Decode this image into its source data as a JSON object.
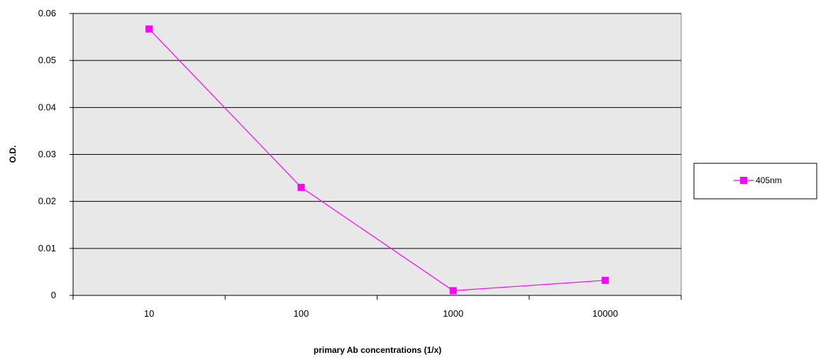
{
  "chart_data": {
    "type": "line",
    "title": "",
    "xlabel": "primary Ab concentrations (1/x)",
    "ylabel": "O.D.",
    "categories": [
      "10",
      "100",
      "1000",
      "10000"
    ],
    "ylim": [
      0,
      0.06
    ],
    "yticks": [
      "0",
      "0.01",
      "0.02",
      "0.03",
      "0.04",
      "0.05",
      "0.06"
    ],
    "grid": "horizontal",
    "legend": "right",
    "series": [
      {
        "name": "405nm",
        "color": "#ff00ff",
        "marker": "square",
        "values": [
          0.0567,
          0.023,
          0.001,
          0.0032
        ]
      }
    ]
  }
}
